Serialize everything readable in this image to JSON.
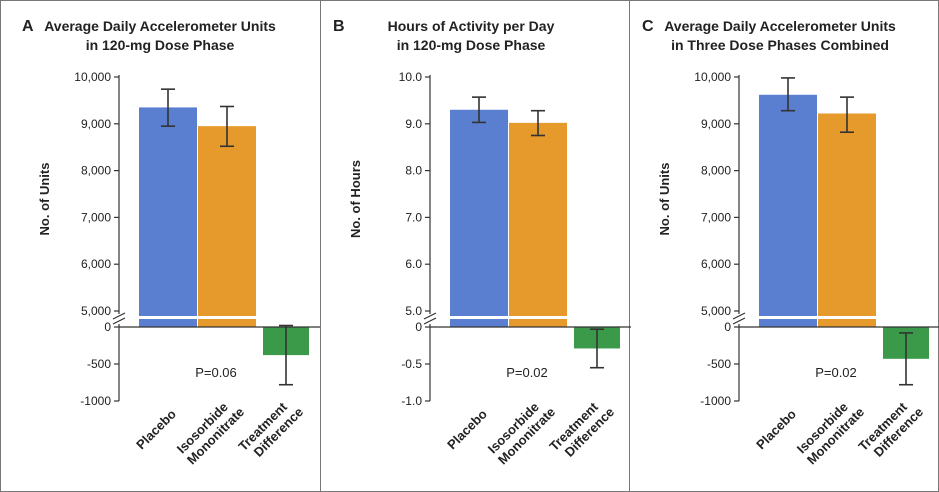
{
  "colors": {
    "placebo": "#5b7fd0",
    "isosorbide": "#e69a2c",
    "difference": "#3a9a4a",
    "frame": "#777777",
    "text": "#222222"
  },
  "categories": [
    {
      "line1": "Placebo",
      "line2": ""
    },
    {
      "line1": "Isosorbide",
      "line2": "Mononitrate"
    },
    {
      "line1": "Treatment",
      "line2": "Difference"
    }
  ],
  "chart_data": [
    {
      "type": "bar",
      "panel_letter": "A",
      "title_line1": "Average Daily Accelerometer Units",
      "title_line2": "in 120-mg Dose Phase",
      "ylabel": "No. of Units",
      "upper": {
        "ylim": [
          5000,
          10000
        ],
        "ticks": [
          "10,000",
          "9,000",
          "8,000",
          "7,000",
          "6,000",
          "5,000"
        ],
        "tick_values": [
          10000,
          9000,
          8000,
          7000,
          6000,
          5000
        ]
      },
      "lower": {
        "ylim": [
          -1000,
          0
        ],
        "ticks": [
          "0",
          "-500",
          "-1000"
        ],
        "tick_values": [
          0,
          -500,
          -1000
        ]
      },
      "bars": [
        {
          "category": "Placebo",
          "value": 9350,
          "ci": [
            8950,
            9740
          ]
        },
        {
          "category": "Isosorbide Mononitrate",
          "value": 8950,
          "ci": [
            8520,
            9370
          ]
        }
      ],
      "difference": {
        "value": -380,
        "ci": [
          -780,
          20
        ]
      },
      "p_value": "P=0.06"
    },
    {
      "type": "bar",
      "panel_letter": "B",
      "title_line1": "Hours of Activity per Day",
      "title_line2": "in 120-mg Dose Phase",
      "ylabel": "No. of Hours",
      "upper": {
        "ylim": [
          5.0,
          10.0
        ],
        "ticks": [
          "10.0",
          "9.0",
          "8.0",
          "7.0",
          "6.0",
          "5.0"
        ],
        "tick_values": [
          10.0,
          9.0,
          8.0,
          7.0,
          6.0,
          5.0
        ]
      },
      "lower": {
        "ylim": [
          -1.0,
          0
        ],
        "ticks": [
          "0",
          "-0.5",
          "-1.0"
        ],
        "tick_values": [
          0,
          -0.5,
          -1.0
        ]
      },
      "bars": [
        {
          "category": "Placebo",
          "value": 9.3,
          "ci": [
            9.03,
            9.57
          ]
        },
        {
          "category": "Isosorbide Mononitrate",
          "value": 9.02,
          "ci": [
            8.75,
            9.28
          ]
        }
      ],
      "difference": {
        "value": -0.29,
        "ci": [
          -0.55,
          -0.03
        ]
      },
      "p_value": "P=0.02"
    },
    {
      "type": "bar",
      "panel_letter": "C",
      "title_line1": "Average Daily Accelerometer Units",
      "title_line2": "in Three Dose Phases Combined",
      "ylabel": "No. of Units",
      "upper": {
        "ylim": [
          5000,
          10000
        ],
        "ticks": [
          "10,000",
          "9,000",
          "8,000",
          "7,000",
          "6,000",
          "5,000"
        ],
        "tick_values": [
          10000,
          9000,
          8000,
          7000,
          6000,
          5000
        ]
      },
      "lower": {
        "ylim": [
          -1000,
          0
        ],
        "ticks": [
          "0",
          "-500",
          "-1000"
        ],
        "tick_values": [
          0,
          -500,
          -1000
        ]
      },
      "bars": [
        {
          "category": "Placebo",
          "value": 9620,
          "ci": [
            9280,
            9980
          ]
        },
        {
          "category": "Isosorbide Mononitrate",
          "value": 9220,
          "ci": [
            8820,
            9570
          ]
        }
      ],
      "difference": {
        "value": -430,
        "ci": [
          -780,
          -80
        ]
      },
      "p_value": "P=0.02"
    }
  ]
}
